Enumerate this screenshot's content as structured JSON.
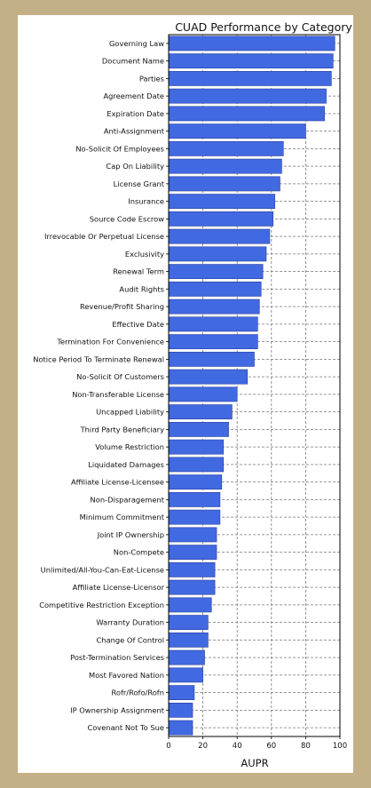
{
  "chart_data": {
    "type": "bar",
    "orientation": "horizontal",
    "title": "CUAD Performance by Category",
    "xlabel": "AUPR",
    "ylabel": "",
    "xlim": [
      0,
      100
    ],
    "xticks": [
      0,
      20,
      40,
      60,
      80,
      100
    ],
    "grid": true,
    "bar_color": "#4169e1",
    "categories": [
      "Governing Law",
      "Document Name",
      "Parties",
      "Agreement Date",
      "Expiration Date",
      "Anti-Assignment",
      "No-Solicit Of Employees",
      "Cap On Liability",
      "License Grant",
      "Insurance",
      "Source Code Escrow",
      "Irrevocable Or Perpetual License",
      "Exclusivity",
      "Renewal Term",
      "Audit Rights",
      "Revenue/Profit Sharing",
      "Effective Date",
      "Termination For Convenience",
      "Notice Period To Terminate Renewal",
      "No-Solicit Of Customers",
      "Non-Transferable License",
      "Uncapped Liability",
      "Third Party Beneficiary",
      "Volume Restriction",
      "Liquidated Damages",
      "Affiliate License-Licensee",
      "Non-Disparagement",
      "Minimum Commitment",
      "Joint IP Ownership",
      "Non-Compete",
      "Unlimited/All-You-Can-Eat-License",
      "Affiliate License-Licensor",
      "Competitive Restriction Exception",
      "Warranty Duration",
      "Change Of Control",
      "Post-Termination Services",
      "Most Favored Nation",
      "Rofr/Rofo/Rofn",
      "IP Ownership Assignment",
      "Covenant Not To Sue"
    ],
    "values": [
      97,
      96,
      95,
      92,
      91,
      80,
      67,
      66,
      65,
      62,
      61,
      59,
      57,
      55,
      54,
      53,
      52,
      52,
      50,
      46,
      40,
      37,
      35,
      32,
      32,
      31,
      30,
      30,
      28,
      28,
      27,
      27,
      25,
      23,
      23,
      21,
      20,
      15,
      14,
      14
    ]
  }
}
